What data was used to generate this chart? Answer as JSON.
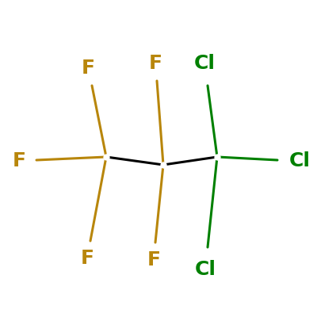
{
  "background_color": "#ffffff",
  "bond_color": "#000000",
  "F_color": "#b8860b",
  "Cl_color": "#008000",
  "font_size": 18,
  "font_weight": "bold",
  "figsize": [
    4.0,
    4.0
  ],
  "dpi": 100,
  "atoms": {
    "C1": [
      0.335,
      0.505
    ],
    "C2": [
      0.515,
      0.48
    ],
    "C3": [
      0.685,
      0.505
    ]
  },
  "carbon_bonds": [
    [
      "C1",
      "C2"
    ],
    [
      "C2",
      "C3"
    ]
  ],
  "substituents": [
    {
      "label": "F",
      "from": "C1",
      "to": [
        0.285,
        0.24
      ],
      "bond_color": "#b8860b",
      "label_color": "#b8860b"
    },
    {
      "label": "F",
      "from": "C1",
      "to": [
        0.115,
        0.495
      ],
      "bond_color": "#b8860b",
      "label_color": "#b8860b"
    },
    {
      "label": "F",
      "from": "C1",
      "to": [
        0.29,
        0.73
      ],
      "bond_color": "#b8860b",
      "label_color": "#b8860b"
    },
    {
      "label": "F",
      "from": "C2",
      "to": [
        0.49,
        0.235
      ],
      "bond_color": "#b8860b",
      "label_color": "#b8860b"
    },
    {
      "label": "F",
      "from": "C2",
      "to": [
        0.495,
        0.745
      ],
      "bond_color": "#b8860b",
      "label_color": "#b8860b"
    },
    {
      "label": "Cl",
      "from": "C3",
      "to": [
        0.655,
        0.22
      ],
      "bond_color": "#008000",
      "label_color": "#008000"
    },
    {
      "label": "Cl",
      "from": "C3",
      "to": [
        0.875,
        0.495
      ],
      "bond_color": "#008000",
      "label_color": "#008000"
    },
    {
      "label": "Cl",
      "from": "C3",
      "to": [
        0.655,
        0.73
      ],
      "bond_color": "#008000",
      "label_color": "#008000"
    }
  ],
  "label_offsets": {
    "F": 0.055,
    "Cl": 0.07
  }
}
